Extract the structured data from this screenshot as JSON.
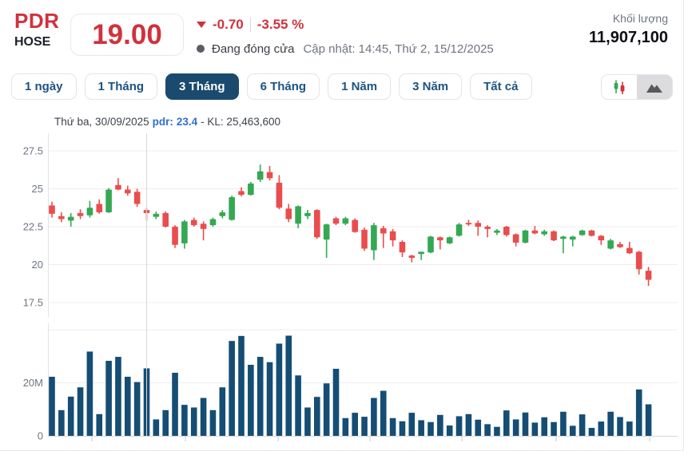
{
  "header": {
    "ticker": "PDR",
    "exchange": "HOSE",
    "price": "19.00",
    "change": "-0.70",
    "change_percent": "-3.55 %",
    "market_status": "Đang đóng cửa",
    "updated": "Cập nhật: 14:45, Thứ 2, 15/12/2025",
    "volume_label": "Khối lượng",
    "volume_value": "11,907,100"
  },
  "tabs": {
    "items": [
      {
        "label": "1 ngày"
      },
      {
        "label": "1 Tháng"
      },
      {
        "label": "3 Tháng"
      },
      {
        "label": "6 Tháng"
      },
      {
        "label": "1 Năm"
      },
      {
        "label": "3 Năm"
      },
      {
        "label": "Tất cả"
      }
    ],
    "active_index": 2
  },
  "chart_toggle": {
    "candlestick_icon": "candlestick-icon",
    "area_icon": "mountain-area-icon",
    "selected": "area"
  },
  "tooltip": {
    "date": "Thứ ba, 30/09/2025",
    "symbol": "pdr:",
    "price": "23.4",
    "volume": "- KL: 25,463,600"
  },
  "chart_data": {
    "type": "candlestick+volume",
    "symbol": "PDR",
    "period": "3 Tháng",
    "colors": {
      "up": "#34a853",
      "down": "#ea4d4d",
      "volume_bar": "#154d74",
      "grid": "#ededf0",
      "crosshair": "#d8d8dd",
      "axis_text": "#6e7580"
    },
    "price_axis": {
      "ticks": [
        {
          "text": "27.5",
          "value": 27.5
        },
        {
          "text": "25",
          "value": 25
        },
        {
          "text": "22.5",
          "value": 22.5
        },
        {
          "text": "20",
          "value": 20
        },
        {
          "text": "17.5",
          "value": 17.5
        }
      ]
    },
    "volume_axis": {
      "gridlines_m": [
        20,
        40
      ],
      "labels": [
        {
          "text": "20M",
          "value": 20
        },
        {
          "text": "0",
          "value": 0
        }
      ]
    },
    "crosshair_index": 10,
    "candles": [
      [
        23.9,
        24.15,
        23.1,
        23.35
      ],
      [
        23.2,
        23.45,
        22.8,
        23.0
      ],
      [
        22.9,
        23.4,
        22.5,
        23.15
      ],
      [
        23.4,
        23.65,
        23.0,
        23.2
      ],
      [
        23.25,
        24.2,
        23.1,
        23.75
      ],
      [
        24.0,
        24.3,
        23.35,
        23.45
      ],
      [
        23.45,
        25.05,
        23.4,
        24.95
      ],
      [
        25.25,
        25.7,
        24.9,
        24.95
      ],
      [
        24.95,
        25.2,
        24.55,
        24.7
      ],
      [
        24.8,
        25.0,
        23.8,
        24.0
      ],
      [
        23.6,
        23.75,
        22.9,
        23.4
      ],
      [
        23.15,
        23.5,
        23.0,
        23.35
      ],
      [
        23.4,
        23.5,
        22.45,
        22.5
      ],
      [
        22.5,
        22.6,
        21.1,
        21.3
      ],
      [
        21.4,
        22.95,
        21.05,
        22.85
      ],
      [
        22.95,
        23.1,
        22.5,
        22.6
      ],
      [
        22.7,
        22.85,
        21.6,
        22.35
      ],
      [
        22.6,
        23.1,
        22.5,
        23.0
      ],
      [
        23.2,
        23.6,
        23.05,
        23.45
      ],
      [
        22.95,
        24.55,
        22.9,
        24.45
      ],
      [
        24.85,
        25.1,
        24.5,
        24.6
      ],
      [
        24.6,
        25.45,
        24.55,
        25.35
      ],
      [
        25.6,
        26.6,
        25.45,
        26.15
      ],
      [
        26.1,
        26.5,
        25.55,
        25.7
      ],
      [
        25.4,
        25.9,
        23.65,
        23.75
      ],
      [
        23.7,
        24.0,
        22.8,
        23.0
      ],
      [
        22.7,
        23.9,
        22.4,
        23.85
      ],
      [
        23.2,
        23.6,
        23.0,
        23.4
      ],
      [
        23.6,
        23.65,
        21.7,
        21.8
      ],
      [
        21.65,
        22.7,
        20.45,
        22.65
      ],
      [
        23.05,
        23.15,
        22.6,
        22.7
      ],
      [
        22.7,
        23.15,
        22.6,
        23.05
      ],
      [
        22.95,
        23.05,
        22.1,
        22.15
      ],
      [
        22.3,
        22.45,
        20.9,
        21.05
      ],
      [
        20.95,
        22.75,
        20.3,
        22.6
      ],
      [
        22.4,
        22.55,
        21.1,
        22.05
      ],
      [
        22.2,
        22.35,
        21.2,
        21.6
      ],
      [
        21.5,
        21.6,
        20.5,
        20.8
      ],
      [
        20.6,
        20.65,
        20.15,
        20.45
      ],
      [
        20.7,
        20.85,
        20.3,
        20.85
      ],
      [
        20.8,
        21.9,
        20.75,
        21.85
      ],
      [
        21.8,
        21.85,
        21.0,
        21.6
      ],
      [
        21.4,
        21.85,
        21.35,
        21.8
      ],
      [
        21.9,
        22.75,
        21.85,
        22.65
      ],
      [
        22.75,
        22.95,
        22.55,
        22.65
      ],
      [
        22.75,
        22.9,
        21.9,
        22.5
      ],
      [
        22.5,
        22.6,
        21.8,
        22.35
      ],
      [
        22.1,
        22.35,
        21.95,
        22.25
      ],
      [
        22.5,
        22.55,
        21.85,
        21.95
      ],
      [
        22.0,
        22.05,
        21.2,
        21.45
      ],
      [
        21.45,
        22.3,
        21.4,
        22.25
      ],
      [
        22.25,
        22.55,
        22.0,
        22.05
      ],
      [
        22.0,
        22.3,
        21.9,
        22.2
      ],
      [
        22.2,
        22.25,
        21.55,
        21.6
      ],
      [
        21.7,
        21.9,
        20.75,
        21.85
      ],
      [
        21.65,
        21.9,
        21.2,
        21.85
      ],
      [
        21.95,
        22.3,
        21.9,
        22.25
      ],
      [
        22.25,
        22.3,
        21.85,
        21.9
      ],
      [
        21.9,
        21.95,
        21.3,
        21.6
      ],
      [
        21.05,
        21.7,
        21.0,
        21.6
      ],
      [
        21.35,
        21.5,
        21.1,
        21.15
      ],
      [
        21.1,
        21.5,
        20.7,
        20.75
      ],
      [
        20.85,
        20.9,
        19.35,
        19.7
      ],
      [
        19.6,
        19.85,
        18.6,
        19.0
      ]
    ],
    "volumes_millions": [
      22.3,
      9.7,
      14.8,
      18.3,
      31.8,
      8.2,
      28.3,
      29.8,
      22.3,
      20.3,
      25.46,
      6.2,
      9.7,
      23.8,
      11.7,
      10.7,
      14.3,
      9.7,
      18.3,
      35.8,
      37.7,
      26.8,
      29.8,
      27.8,
      34.8,
      37.8,
      22.8,
      10.7,
      14.7,
      19.8,
      25.3,
      6.7,
      8.7,
      7.2,
      14.3,
      17.0,
      6.7,
      5.5,
      8.7,
      5.9,
      5.2,
      7.9,
      3.9,
      7.4,
      8.2,
      6.1,
      4.4,
      3.4,
      9.6,
      6.2,
      8.8,
      5.0,
      7.0,
      5.2,
      9.1,
      3.8,
      8.1,
      3.0,
      5.4,
      9.1,
      7.1,
      5.4,
      17.5,
      11.9
    ]
  }
}
